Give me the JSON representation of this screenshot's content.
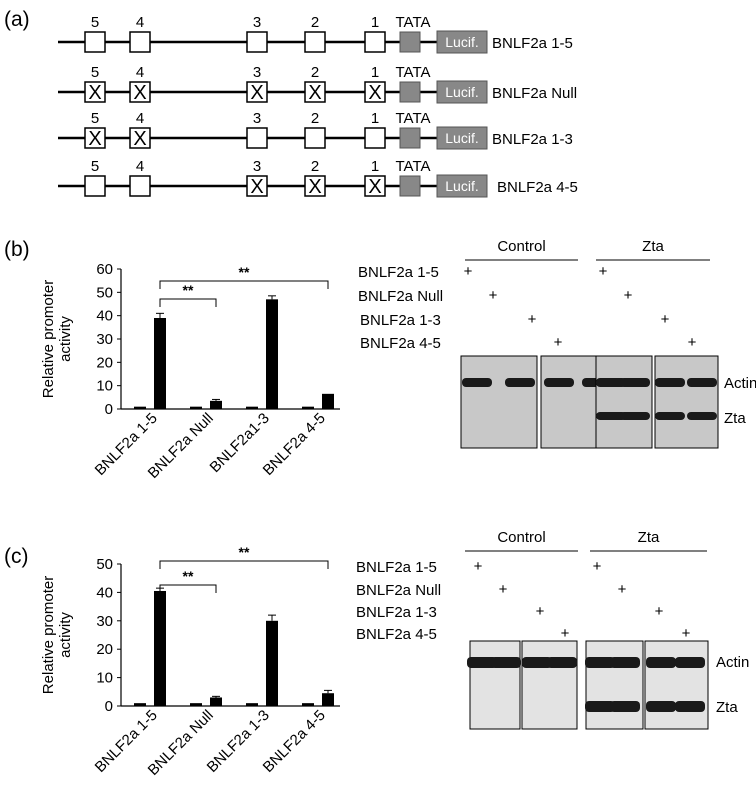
{
  "panel_a": {
    "label": "(a)",
    "tata_label": "TATA",
    "luciferase_label": "Lucif.",
    "site_labels": [
      "5",
      "4",
      "3",
      "2",
      "1"
    ],
    "constructs": [
      {
        "name": "BNLF2a 1-5",
        "mutated_sites": []
      },
      {
        "name": "BNLF2a Null",
        "mutated_sites": [
          "5",
          "4",
          "3",
          "2",
          "1"
        ]
      },
      {
        "name": "BNLF2a 1-3",
        "mutated_sites": [
          "5",
          "4"
        ]
      },
      {
        "name": "BNLF2a 4-5",
        "mutated_sites": [
          "3",
          "2",
          "1"
        ]
      }
    ],
    "mutation_mark": "X"
  },
  "panel_b": {
    "label": "(b)",
    "blot": {
      "group_labels": [
        "Control",
        "Zta"
      ],
      "row_labels": [
        "BNLF2a 1-5",
        "BNLF2a Null",
        "BNLF2a 1-3",
        "BNLF2a 4-5"
      ],
      "plus": "+",
      "band_labels": [
        "Actin",
        "Zta"
      ]
    }
  },
  "panel_c": {
    "label": "(c)",
    "blot": {
      "group_labels": [
        "Control",
        "Zta"
      ],
      "row_labels": [
        "BNLF2a 1-5",
        "BNLF2a Null",
        "BNLF2a 1-3",
        "BNLF2a 4-5"
      ],
      "plus": "+",
      "band_labels": [
        "Actin",
        "Zta"
      ]
    }
  },
  "chart_data": [
    {
      "type": "bar",
      "title": "",
      "ylabel": "Relative promoter activity",
      "ylabel_lines": [
        "Relative promoter",
        "activity"
      ],
      "categories": [
        "BNLF2a 1-5",
        "BNLF2a Null",
        "BNLF2a1-3",
        "BNLF2a 4-5"
      ],
      "series": [
        {
          "values": [
            1,
            1,
            1,
            1
          ],
          "errors": [
            0,
            0,
            0,
            0
          ]
        },
        {
          "values": [
            39,
            3.5,
            47,
            6.5
          ],
          "errors": [
            2,
            0.6,
            1.5,
            0
          ]
        }
      ],
      "ylim": [
        0,
        60
      ],
      "yticks": [
        "0",
        "10",
        "20",
        "30",
        "40",
        "50",
        "60"
      ],
      "significance": [
        {
          "from": 0,
          "to": 1,
          "label": "**"
        },
        {
          "from": 0,
          "to": 3,
          "label": "**"
        }
      ]
    },
    {
      "type": "bar",
      "title": "",
      "ylabel": "Relative promoter activity",
      "ylabel_lines": [
        "Relative promoter",
        "activity"
      ],
      "categories": [
        "BNLF2a 1-5",
        "BNLF2a Null",
        "BNLF2a 1-3",
        "BNLF2a 4-5"
      ],
      "series": [
        {
          "values": [
            1,
            1,
            1,
            1
          ],
          "errors": [
            0,
            0,
            0,
            0
          ]
        },
        {
          "values": [
            40.5,
            3,
            30,
            4.5
          ],
          "errors": [
            1,
            0.4,
            2,
            1
          ]
        }
      ],
      "ylim": [
        0,
        50
      ],
      "yticks": [
        "0",
        "10",
        "20",
        "30",
        "40",
        "50"
      ],
      "significance": [
        {
          "from": 0,
          "to": 1,
          "label": "**"
        },
        {
          "from": 0,
          "to": 3,
          "label": "**"
        }
      ]
    }
  ]
}
